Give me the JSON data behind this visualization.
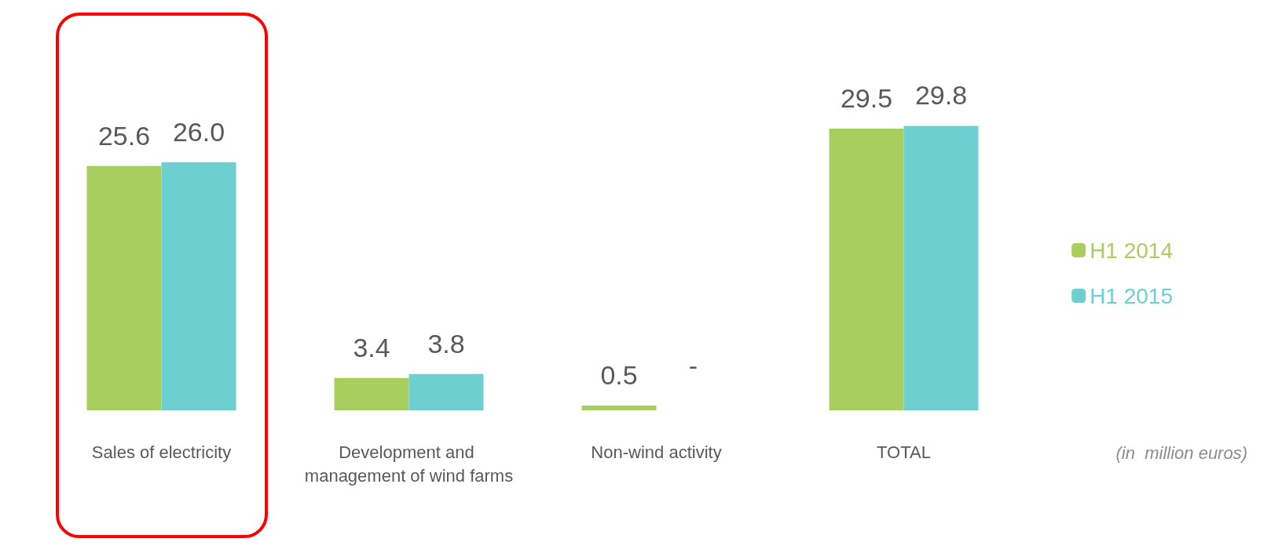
{
  "chart_data": {
    "type": "bar",
    "categories": [
      "Sales of electricity",
      "Development and management of wind farms",
      "Non-wind activity",
      "TOTAL"
    ],
    "series": [
      {
        "name": "H1 2014",
        "color": "#a8cf5e",
        "values": [
          25.6,
          3.4,
          0.5,
          29.5
        ],
        "value_labels": [
          "25.6",
          "3.4",
          "0.5",
          "29.5"
        ]
      },
      {
        "name": "H1 2015",
        "color": "#6dcfcf",
        "values": [
          26.0,
          3.8,
          null,
          29.8
        ],
        "value_labels": [
          "26.0",
          "3.8",
          null,
          "29.8"
        ]
      }
    ],
    "legend": "right",
    "annotations": [
      "(in  million euros)",
      {
        "text": "-",
        "x": "Non-wind activity",
        "y": 0
      }
    ]
  }
}
